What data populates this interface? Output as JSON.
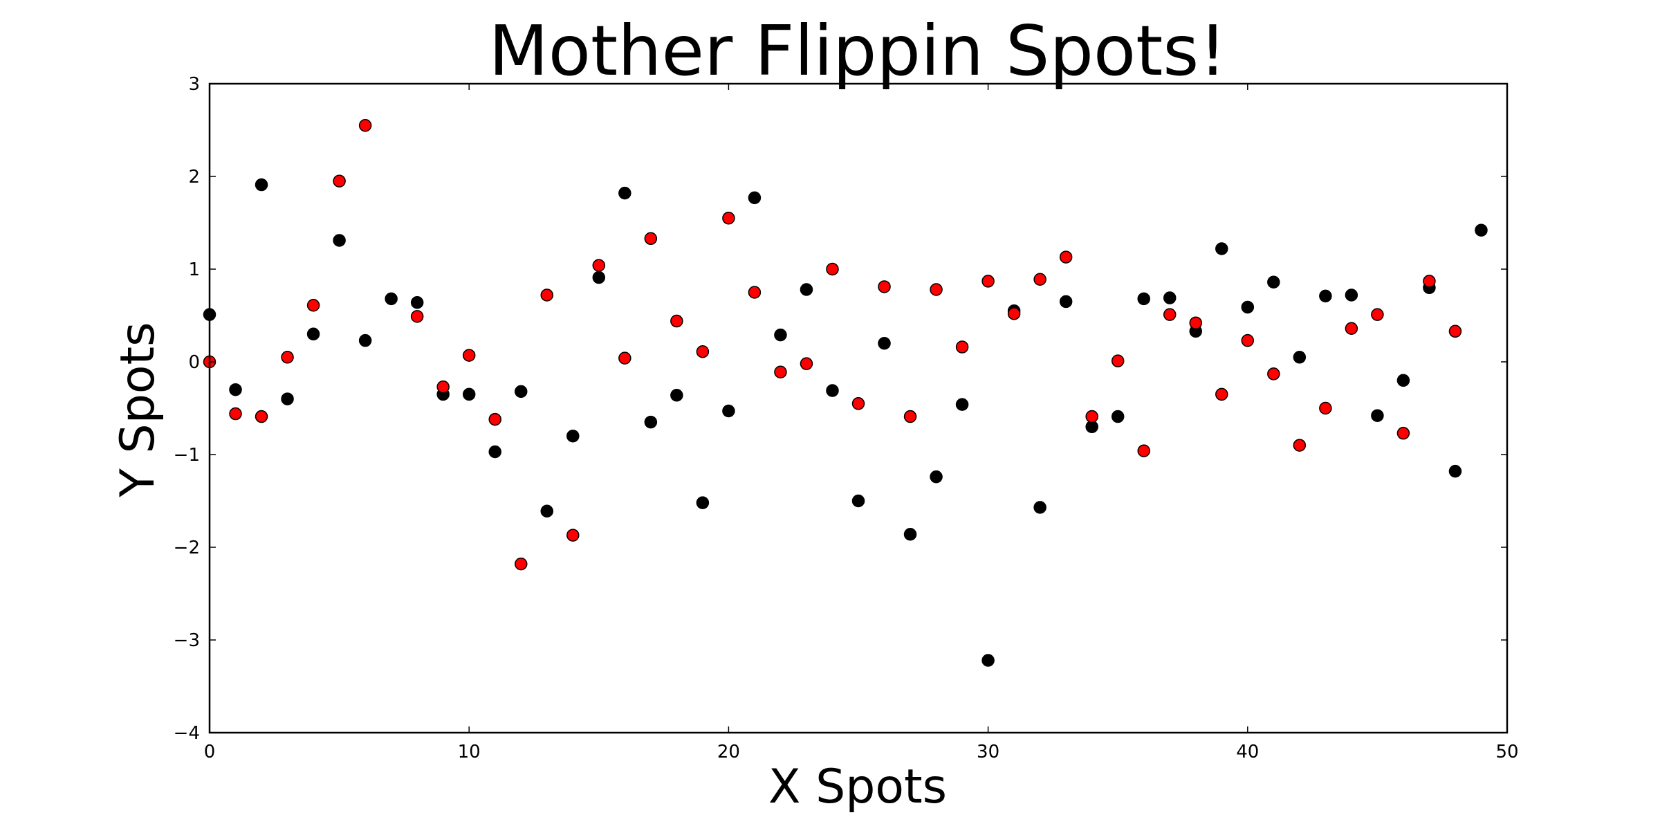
{
  "chart_data": {
    "type": "scatter",
    "title": "Mother Flippin Spots!",
    "xlabel": "X Spots",
    "ylabel": "Y Spots",
    "xlim": [
      0,
      50
    ],
    "ylim": [
      -4,
      3
    ],
    "xticks": [
      0,
      10,
      20,
      30,
      40,
      50
    ],
    "xtick_labels": [
      "0",
      "10",
      "20",
      "30",
      "40",
      "50"
    ],
    "yticks": [
      3,
      2,
      1,
      0,
      -1,
      -2,
      -3,
      -4
    ],
    "ytick_labels": [
      "3",
      "2",
      "1",
      "0",
      "−1",
      "−2",
      "−3",
      "−4"
    ],
    "grid": false,
    "legend": "none",
    "series": [
      {
        "color": "#000000",
        "x": [
          0,
          1,
          2,
          3,
          4,
          5,
          6,
          7,
          8,
          9,
          10,
          11,
          12,
          13,
          14,
          15,
          16,
          17,
          18,
          19,
          20,
          21,
          22,
          23,
          24,
          25,
          26,
          27,
          28,
          29,
          30,
          31,
          32,
          33,
          34,
          35,
          36,
          37,
          38,
          39,
          40,
          41,
          42,
          43,
          44,
          45,
          46,
          47,
          48,
          49
        ],
        "y": [
          0.51,
          -0.3,
          1.91,
          -0.4,
          0.3,
          1.31,
          0.23,
          0.68,
          0.64,
          -0.35,
          -0.35,
          -0.97,
          -0.32,
          -1.61,
          -0.8,
          0.91,
          1.82,
          -0.65,
          -0.36,
          -1.52,
          -0.53,
          1.77,
          0.29,
          0.78,
          -0.31,
          -1.5,
          0.2,
          -1.86,
          -1.24,
          -0.46,
          -3.22,
          0.55,
          -1.57,
          0.65,
          -0.7,
          -0.59,
          0.68,
          0.69,
          0.33,
          1.22,
          0.59,
          0.86,
          0.05,
          0.71,
          0.72,
          -0.58,
          -0.2,
          0.8,
          -1.18,
          1.42
        ]
      },
      {
        "color": "#ff0000",
        "x": [
          0,
          1,
          2,
          3,
          4,
          5,
          6,
          8,
          9,
          10,
          11,
          12,
          13,
          14,
          15,
          16,
          17,
          18,
          19,
          20,
          21,
          22,
          23,
          24,
          25,
          26,
          27,
          28,
          29,
          30,
          31,
          32,
          33,
          34,
          35,
          36,
          37,
          38,
          39,
          40,
          41,
          42,
          43,
          44,
          45,
          46,
          47,
          48
        ],
        "y": [
          0.0,
          -0.56,
          -0.59,
          0.05,
          0.61,
          1.95,
          2.55,
          0.49,
          -0.27,
          0.07,
          -0.62,
          -2.18,
          0.72,
          -1.87,
          1.04,
          0.04,
          1.33,
          0.44,
          0.11,
          1.55,
          0.75,
          -0.11,
          -0.02,
          1.0,
          -0.45,
          0.81,
          -0.59,
          0.78,
          0.16,
          0.87,
          0.52,
          0.89,
          1.13,
          -0.59,
          0.01,
          -0.96,
          0.51,
          0.42,
          -0.35,
          0.23,
          -0.13,
          -0.9,
          -0.5,
          0.36,
          0.51,
          -0.77,
          0.87,
          0.33
        ]
      }
    ]
  }
}
